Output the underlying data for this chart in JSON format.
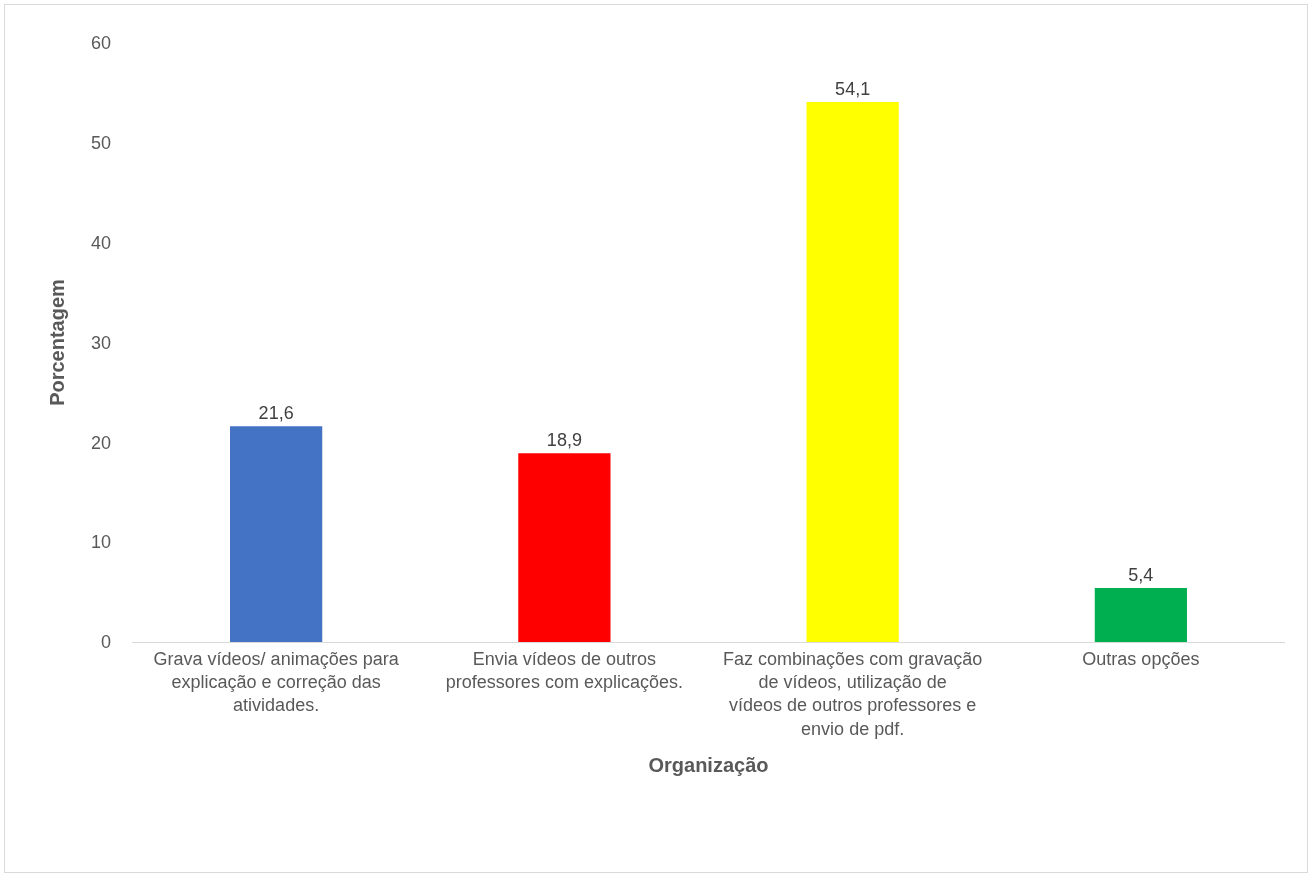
{
  "chart_data": {
    "type": "bar",
    "categories": [
      "Grava vídeos/ animações para explicação e correção das atividades.",
      "Envia vídeos de outros professores com explicações.",
      "Faz combinações com gravação de vídeos, utilização de vídeos de outros professores e envio de pdf.",
      "Outras opções"
    ],
    "values": [
      21.6,
      18.9,
      54.1,
      5.4
    ],
    "value_labels": [
      "21,6",
      "18,9",
      "54,1",
      "5,4"
    ],
    "colors": [
      "#4472c4",
      "#ff0000",
      "#ffff00",
      "#00b050"
    ],
    "xlabel": "Organização",
    "ylabel": "Porcentagem",
    "ylim": [
      0,
      60
    ],
    "yticks": [
      0,
      10,
      20,
      30,
      40,
      50,
      60
    ],
    "grid": false
  }
}
